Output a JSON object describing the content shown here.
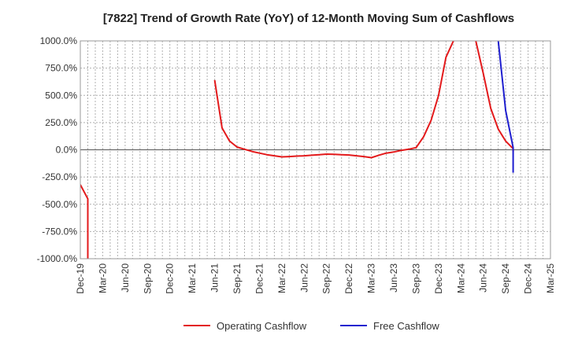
{
  "chart_data": {
    "type": "line",
    "title": "[7822]  Trend of Growth Rate (YoY) of 12-Month Moving Sum of Cashflows",
    "xlabel": "",
    "ylabel": "",
    "ylim": [
      -1000,
      1000
    ],
    "y_ticks": [
      1000,
      750,
      500,
      250,
      0,
      -250,
      -500,
      -750,
      -1000
    ],
    "y_tick_labels": [
      "1000.0%",
      "750.0%",
      "500.0%",
      "250.0%",
      "0.0%",
      "-250.0%",
      "-500.0%",
      "-750.0%",
      "-1000.0%"
    ],
    "x_tick_labels": [
      "Dec-19",
      "Mar-20",
      "Jun-20",
      "Sep-20",
      "Dec-20",
      "Mar-21",
      "Jun-21",
      "Sep-21",
      "Dec-21",
      "Mar-22",
      "Jun-22",
      "Sep-22",
      "Dec-22",
      "Mar-23",
      "Jun-23",
      "Sep-23",
      "Dec-23",
      "Mar-24",
      "Jun-24",
      "Sep-24",
      "Dec-24",
      "Mar-25"
    ],
    "x_start": "2019-12",
    "x_end": "2025-03",
    "grid": true,
    "legend_position": "bottom-center",
    "series": [
      {
        "name": "Operating Cashflow",
        "color": "#e31a1c",
        "points": [
          {
            "x": "2019-12",
            "y": -320
          },
          {
            "x": "2020-01",
            "y": -450
          },
          {
            "x": "2020-01",
            "y": -1000
          },
          {
            "x": null,
            "y": null
          },
          {
            "x": "2021-06",
            "y": 640
          },
          {
            "x": "2021-07",
            "y": 200
          },
          {
            "x": "2021-08",
            "y": 80
          },
          {
            "x": "2021-09",
            "y": 25
          },
          {
            "x": "2021-10",
            "y": 5
          },
          {
            "x": "2021-11",
            "y": -15
          },
          {
            "x": "2021-12",
            "y": -30
          },
          {
            "x": "2022-01",
            "y": -45
          },
          {
            "x": "2022-02",
            "y": -55
          },
          {
            "x": "2022-03",
            "y": -65
          },
          {
            "x": "2022-04",
            "y": -62
          },
          {
            "x": "2022-05",
            "y": -58
          },
          {
            "x": "2022-06",
            "y": -55
          },
          {
            "x": "2022-07",
            "y": -50
          },
          {
            "x": "2022-08",
            "y": -45
          },
          {
            "x": "2022-09",
            "y": -40
          },
          {
            "x": "2022-10",
            "y": -42
          },
          {
            "x": "2022-11",
            "y": -45
          },
          {
            "x": "2022-12",
            "y": -48
          },
          {
            "x": "2023-01",
            "y": -55
          },
          {
            "x": "2023-02",
            "y": -62
          },
          {
            "x": "2023-03",
            "y": -72
          },
          {
            "x": "2023-04",
            "y": -50
          },
          {
            "x": "2023-05",
            "y": -30
          },
          {
            "x": "2023-06",
            "y": -20
          },
          {
            "x": "2023-07",
            "y": -5
          },
          {
            "x": "2023-08",
            "y": 5
          },
          {
            "x": "2023-09",
            "y": 20
          },
          {
            "x": "2023-10",
            "y": 120
          },
          {
            "x": "2023-11",
            "y": 270
          },
          {
            "x": "2023-12",
            "y": 500
          },
          {
            "x": "2024-01",
            "y": 850
          },
          {
            "x": "2024-02",
            "y": 1000
          },
          {
            "x": null,
            "y": null
          },
          {
            "x": "2024-05",
            "y": 1000
          },
          {
            "x": "2024-06",
            "y": 700
          },
          {
            "x": "2024-07",
            "y": 380
          },
          {
            "x": "2024-08",
            "y": 190
          },
          {
            "x": "2024-09",
            "y": 80
          },
          {
            "x": "2024-10",
            "y": 10
          },
          {
            "x": "2024-10",
            "y": -20
          }
        ]
      },
      {
        "name": "Free Cashflow",
        "color": "#1f1fcf",
        "points": [
          {
            "x": "2024-08",
            "y": 1000
          },
          {
            "x": "2024-09",
            "y": 360
          },
          {
            "x": "2024-10",
            "y": 20
          },
          {
            "x": "2024-10",
            "y": -210
          }
        ]
      }
    ]
  }
}
